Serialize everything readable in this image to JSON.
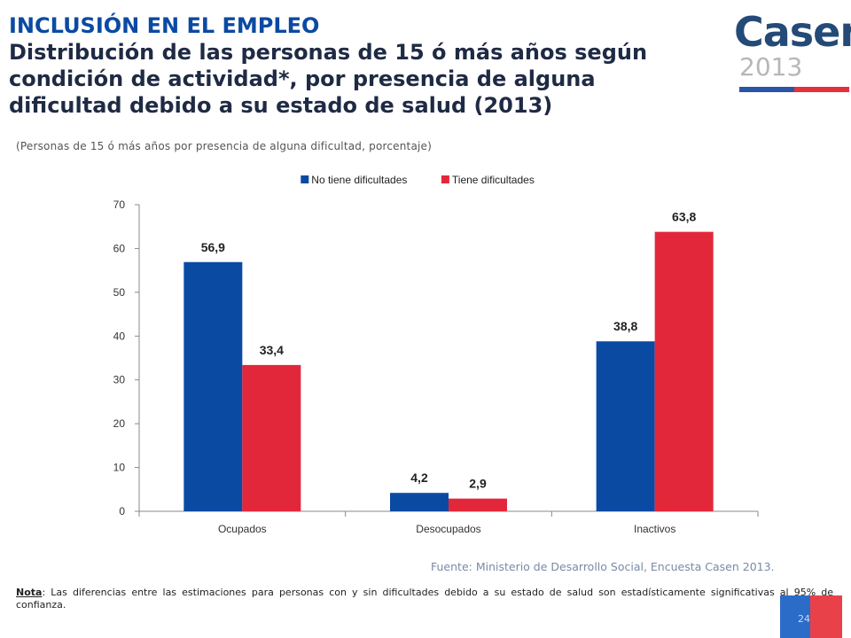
{
  "header": {
    "section": "INCLUSIÓN EN EL EMPLEO",
    "title_lines": [
      "Distribución de las personas de 15 ó más años según",
      "condición de actividad*, por presencia de alguna",
      "dificultad debido a su estado de salud (2013)"
    ],
    "subtitle": "(Personas de 15 ó más años por presencia de alguna dificultad, porcentaje)"
  },
  "logo": {
    "word": "Casen",
    "year": "2013"
  },
  "colors": {
    "blue": "#0b4aa3",
    "red": "#e3273a",
    "title": "#1f2a44"
  },
  "chart_data": {
    "type": "bar",
    "title": "",
    "xlabel": "",
    "ylabel": "",
    "categories": [
      "Ocupados",
      "Desocupados",
      "Inactivos"
    ],
    "series": [
      {
        "name": "No tiene dificultades",
        "values": [
          56.9,
          4.2,
          38.8
        ],
        "labels": [
          "56,9",
          "4,2",
          "38,8"
        ],
        "color": "#0b4aa3"
      },
      {
        "name": "Tiene dificultades",
        "values": [
          33.4,
          2.9,
          63.8
        ],
        "labels": [
          "33,4",
          "2,9",
          "63,8"
        ],
        "color": "#e3273a"
      }
    ],
    "ylim": [
      0,
      70
    ],
    "yticks": [
      0,
      10,
      20,
      30,
      40,
      50,
      60,
      70
    ],
    "grid": false,
    "legend": "top-center"
  },
  "footer": {
    "source": "Fuente: Ministerio de Desarrollo Social, Encuesta Casen 2013.",
    "note_label": "Nota",
    "note_text": ": Las diferencias entre las estimaciones para personas con y sin dificultades debido a su estado de salud son estadísticamente significativas al 95% de confianza.",
    "page_number": "24"
  }
}
